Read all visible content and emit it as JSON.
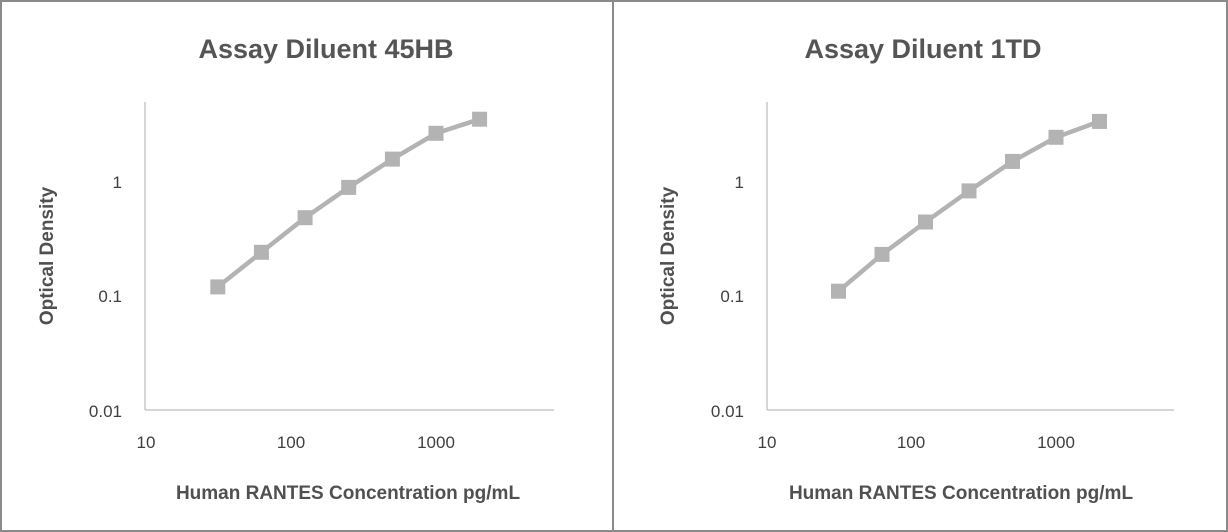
{
  "chart_data": [
    {
      "type": "line",
      "title": "Assay Diluent 45HB",
      "xlabel": "Human RANTES Concentration pg/mL",
      "ylabel": "Optical Density",
      "x_scale": "log",
      "y_scale": "log",
      "xlim": [
        10,
        10000
      ],
      "ylim": [
        0.01,
        10
      ],
      "x_ticks": [
        "10",
        "100",
        "1000"
      ],
      "y_ticks": [
        "0.01",
        "0.1",
        "1"
      ],
      "grid": false,
      "series": [
        {
          "x": [
            31.25,
            62.5,
            125,
            250,
            500,
            1000,
            2000
          ],
          "y": [
            0.12,
            0.24,
            0.48,
            0.88,
            1.55,
            2.6,
            3.45
          ]
        }
      ],
      "colors": {
        "series": "#b3b3b3",
        "axis": "#c8c8c8"
      }
    },
    {
      "type": "line",
      "title": "Assay Diluent 1TD",
      "xlabel": "Human RANTES Concentration pg/mL",
      "ylabel": "Optical Density",
      "x_scale": "log",
      "y_scale": "log",
      "xlim": [
        10,
        10000
      ],
      "ylim": [
        0.01,
        10
      ],
      "x_ticks": [
        "10",
        "100",
        "1000"
      ],
      "y_ticks": [
        "0.01",
        "0.1",
        "1"
      ],
      "grid": false,
      "series": [
        {
          "x": [
            31.25,
            62.5,
            125,
            250,
            500,
            1000,
            2000
          ],
          "y": [
            0.11,
            0.23,
            0.44,
            0.82,
            1.48,
            2.4,
            3.3
          ]
        }
      ],
      "colors": {
        "series": "#b3b3b3",
        "axis": "#c8c8c8"
      }
    }
  ]
}
